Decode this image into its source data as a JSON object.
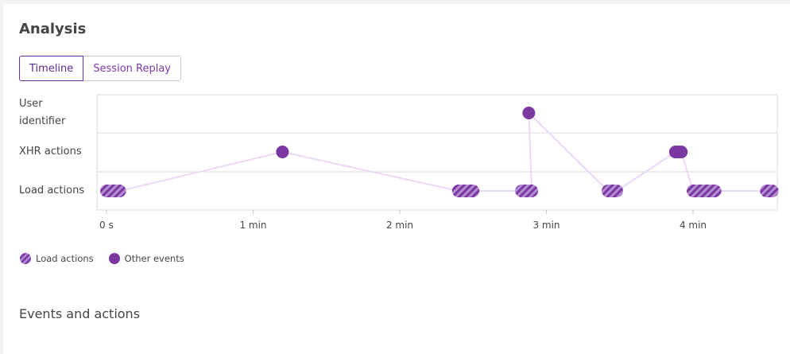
{
  "analysis": {
    "title": "Analysis",
    "tabs": [
      {
        "label": "Timeline",
        "active": true
      },
      {
        "label": "Session Replay",
        "active": false
      }
    ]
  },
  "chart_data": {
    "type": "scatter",
    "lanes": [
      "User identifier",
      "XHR actions",
      "Load actions"
    ],
    "x_unit": "min",
    "xlim": [
      0,
      4.55
    ],
    "x_ticks": [
      {
        "value": 0,
        "label": "0 s"
      },
      {
        "value": 1,
        "label": "1 min"
      },
      {
        "value": 2,
        "label": "2 min"
      },
      {
        "value": 3,
        "label": "3 min"
      },
      {
        "value": 4,
        "label": "4 min"
      }
    ],
    "events": [
      {
        "lane": "Load actions",
        "start": 0.0,
        "end": 0.09,
        "kind": "load"
      },
      {
        "lane": "XHR actions",
        "start": 1.2,
        "end": 1.2,
        "kind": "other"
      },
      {
        "lane": "Load actions",
        "start": 2.4,
        "end": 2.5,
        "kind": "load"
      },
      {
        "lane": "Load actions",
        "start": 2.83,
        "end": 2.9,
        "kind": "load"
      },
      {
        "lane": "User identifier",
        "start": 2.88,
        "end": 2.88,
        "kind": "other"
      },
      {
        "lane": "Load actions",
        "start": 3.42,
        "end": 3.48,
        "kind": "load"
      },
      {
        "lane": "XHR actions",
        "start": 3.88,
        "end": 3.92,
        "kind": "other"
      },
      {
        "lane": "Load actions",
        "start": 4.0,
        "end": 4.15,
        "kind": "load"
      },
      {
        "lane": "Load actions",
        "start": 4.5,
        "end": 4.54,
        "kind": "load"
      }
    ],
    "colors": {
      "event": "#7c38a1",
      "stripe_light": "#b48cd4",
      "connector": "#ecd8f5",
      "grid": "#dadada"
    },
    "grid": true
  },
  "legend": {
    "items": [
      {
        "label": "Load actions",
        "icon": "striped-circle-icon"
      },
      {
        "label": "Other events",
        "icon": "filled-circle-icon"
      }
    ]
  },
  "section": {
    "title": "Events and actions"
  }
}
